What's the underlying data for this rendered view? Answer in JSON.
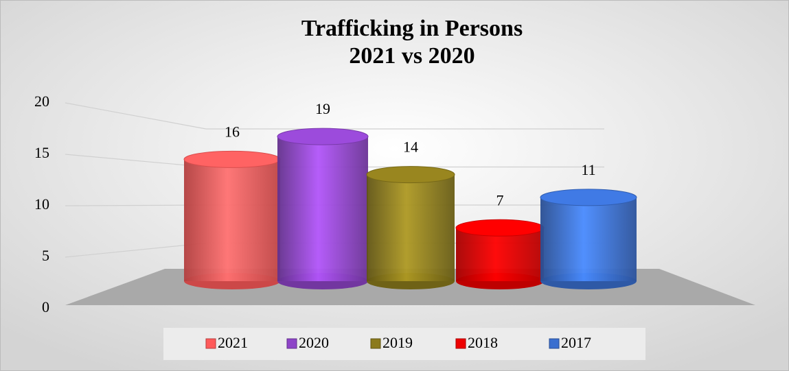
{
  "chart_data": {
    "type": "cylinder-bar",
    "title": "Trafficking in Persons",
    "subtitle": "2021 vs 2020",
    "categories": [
      null
    ],
    "series": [
      {
        "name": "2021",
        "color": "#ff5a5a",
        "values": [
          16
        ]
      },
      {
        "name": "2020",
        "color": "#8e44c8",
        "values": [
          19
        ]
      },
      {
        "name": "2019",
        "color": "#8b7a1c",
        "values": [
          14
        ]
      },
      {
        "name": "2018",
        "color": "#ee0000",
        "values": [
          7
        ]
      },
      {
        "name": "2017",
        "color": "#3a6fd0",
        "values": [
          11
        ]
      }
    ],
    "ylim": [
      0,
      20
    ],
    "yticks": [
      0,
      5,
      10,
      15,
      20
    ],
    "grid": true,
    "legend": "bottom"
  }
}
